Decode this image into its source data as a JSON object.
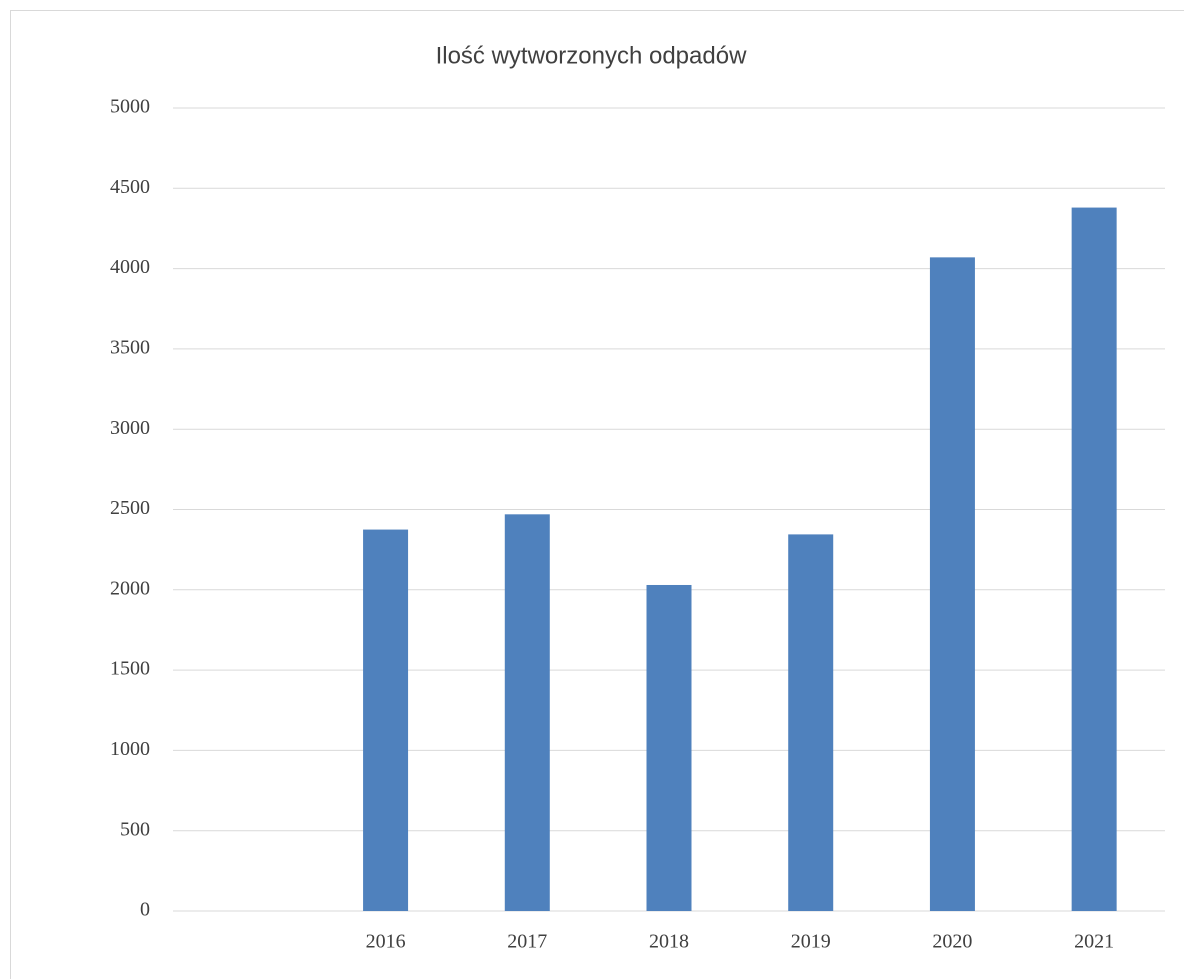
{
  "chart_data": {
    "type": "bar",
    "title": "Ilość wytworzonych odpadów",
    "categories": [
      null,
      "2016",
      "2017",
      "2018",
      "2019",
      "2020",
      "2021"
    ],
    "values": [
      null,
      2375,
      2470,
      2030,
      2345,
      4070,
      4380
    ],
    "color": "#4f81bd",
    "ylim": [
      0,
      5000
    ],
    "yticks": [
      0,
      500,
      1000,
      1500,
      2000,
      2500,
      3000,
      3500,
      4000,
      4500,
      5000
    ],
    "grid": true
  }
}
